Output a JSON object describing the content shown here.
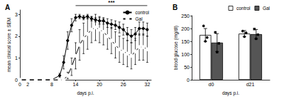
{
  "chart_data": [
    {
      "type": "line",
      "title": "A",
      "xlabel": "days p.i.",
      "ylabel": "mean clinical score ± SEM",
      "x": [
        0,
        2,
        4,
        6,
        8,
        10,
        11,
        12,
        13,
        14,
        15,
        16,
        17,
        18,
        19,
        20,
        21,
        22,
        23,
        24,
        25,
        26,
        27,
        28,
        29,
        30,
        31,
        32
      ],
      "xlim": [
        0,
        33
      ],
      "xticks": [
        0,
        2,
        8,
        14,
        20,
        26,
        32
      ],
      "ylim": [
        0,
        3.2
      ],
      "yticks": [
        0,
        1,
        2,
        3
      ],
      "grid": false,
      "legend": "top-right",
      "series": [
        {
          "name": "control",
          "color": "#000000",
          "marker": "circle",
          "values": [
            0,
            0,
            0,
            0,
            0,
            0.2,
            0.8,
            1.8,
            2.5,
            2.85,
            2.9,
            2.85,
            2.9,
            2.8,
            2.75,
            2.7,
            2.7,
            2.6,
            2.55,
            2.5,
            2.4,
            2.3,
            2.1,
            2.0,
            2.1,
            2.35,
            2.35,
            2.3
          ],
          "error": [
            0,
            0,
            0,
            0,
            0,
            0.1,
            0.3,
            0.4,
            0.3,
            0.15,
            0.1,
            0.1,
            0.1,
            0.1,
            0.1,
            0.15,
            0.15,
            0.2,
            0.2,
            0.2,
            0.25,
            0.25,
            0.3,
            0.3,
            0.3,
            0.3,
            0.3,
            0.3
          ]
        },
        {
          "name": "Gal",
          "color": "#000000",
          "marker": "emptyCircle",
          "values": [
            0,
            0,
            0,
            0,
            0,
            0,
            0,
            0.2,
            0.6,
            1.1,
            1.6,
            1.9,
            2.1,
            2.3,
            2.4,
            2.3,
            2.2,
            2.0,
            1.8,
            1.6,
            1.4,
            1.3,
            1.2,
            1.1,
            1.3,
            1.5,
            1.5,
            1.4
          ],
          "error": [
            0,
            0,
            0,
            0,
            0,
            0,
            0,
            0.15,
            0.4,
            0.6,
            0.7,
            0.7,
            0.7,
            0.6,
            0.6,
            0.6,
            0.6,
            0.6,
            0.6,
            0.6,
            0.6,
            0.6,
            0.6,
            0.6,
            0.6,
            0.6,
            0.6,
            0.6
          ]
        }
      ],
      "annotations": [
        {
          "text": "***",
          "x": [
            14,
            32
          ],
          "y": 3.4
        }
      ]
    },
    {
      "type": "bar",
      "title": "B",
      "xlabel": "days p.i.",
      "ylabel": "blood glucose (mg/dl)",
      "categories": [
        "d0",
        "d21"
      ],
      "ylim": [
        0,
        250
      ],
      "yticks": [
        0,
        50,
        100,
        150,
        200,
        250
      ],
      "grid": false,
      "legend": "top-right",
      "series": [
        {
          "name": "control",
          "color": "#ffffff",
          "values": [
            175,
            180
          ],
          "error": [
            25,
            12
          ],
          "points": [
            [
              210,
              150,
              165
            ],
            [
              190,
              168,
              183
            ]
          ]
        },
        {
          "name": "Gal",
          "color": "#555555",
          "values": [
            145,
            178
          ],
          "error": [
            35,
            18
          ],
          "points": [
            [
              185,
              108,
              142
            ],
            [
              198,
              160,
              176
            ]
          ]
        }
      ]
    }
  ]
}
